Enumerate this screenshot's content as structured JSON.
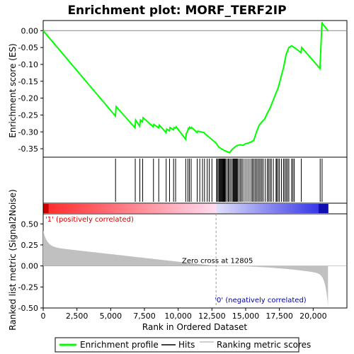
{
  "chart_data": {
    "title": "Enrichment plot: MORF_TERF2IP",
    "type": "line",
    "top_panel": {
      "ylabel": "Enrichment score (ES)",
      "ylim": [
        -0.375,
        0.03
      ],
      "yticks": [
        "0.00",
        "-0.05",
        "-0.10",
        "-0.15",
        "-0.20",
        "-0.25",
        "-0.30",
        "-0.35"
      ],
      "ytick_values": [
        0.0,
        -0.05,
        -0.1,
        -0.15,
        -0.2,
        -0.25,
        -0.3,
        -0.35
      ],
      "series": [
        {
          "name": "Enrichment profile",
          "color": "#00ff00",
          "x": [
            0,
            5350,
            5400,
            6800,
            6850,
            7150,
            7200,
            7350,
            7400,
            8150,
            8200,
            8550,
            8600,
            9100,
            9150,
            9350,
            9400,
            9650,
            9700,
            9800,
            9850,
            10550,
            10600,
            10700,
            10750,
            10800,
            10850,
            10950,
            11000,
            11400,
            11450,
            11900,
            12000,
            12800,
            13000,
            13200,
            13400,
            13600,
            13800,
            14000,
            14200,
            14400,
            14600,
            14800,
            15000,
            15200,
            15400,
            15600,
            15800,
            16000,
            16200,
            16400,
            16600,
            16800,
            17000,
            17200,
            17400,
            17600,
            17800,
            18000,
            18200,
            18400,
            18600,
            19100,
            19150,
            20500,
            20550,
            20650,
            20700,
            21100
          ],
          "y": [
            0.0,
            -0.253,
            -0.225,
            -0.288,
            -0.265,
            -0.283,
            -0.265,
            -0.27,
            -0.258,
            -0.285,
            -0.278,
            -0.288,
            -0.28,
            -0.302,
            -0.292,
            -0.297,
            -0.287,
            -0.294,
            -0.287,
            -0.289,
            -0.285,
            -0.322,
            -0.305,
            -0.298,
            -0.29,
            -0.292,
            -0.286,
            -0.29,
            -0.287,
            -0.302,
            -0.298,
            -0.302,
            -0.306,
            -0.333,
            -0.345,
            -0.35,
            -0.355,
            -0.358,
            -0.362,
            -0.352,
            -0.345,
            -0.34,
            -0.338,
            -0.34,
            -0.335,
            -0.333,
            -0.33,
            -0.325,
            -0.3,
            -0.28,
            -0.27,
            -0.262,
            -0.245,
            -0.23,
            -0.21,
            -0.19,
            -0.17,
            -0.14,
            -0.11,
            -0.07,
            -0.05,
            -0.045,
            -0.05,
            -0.065,
            -0.05,
            -0.112,
            -0.07,
            0.025,
            0.02,
            0.0
          ]
        }
      ]
    },
    "hits": [
      5360,
      6820,
      7160,
      7370,
      8170,
      8560,
      9110,
      9360,
      9660,
      9810,
      10560,
      10720,
      10830,
      10960,
      11410,
      11600,
      11800,
      11950,
      12150,
      12300,
      12500,
      12850,
      12900,
      13000,
      13050,
      13100,
      13150,
      13200,
      13250,
      13300,
      13350,
      13400,
      13450,
      13500,
      13600,
      13700,
      13750,
      13850,
      13950,
      14050,
      14100,
      14150,
      14200,
      14250,
      14300,
      14350,
      14400,
      14500,
      14600,
      14700,
      14800,
      14950,
      15100,
      15250,
      15400,
      15500,
      15600,
      15700,
      15800,
      15900,
      16000,
      16100,
      16200,
      16300,
      16450,
      16600,
      16700,
      16800,
      16900,
      17050,
      17250,
      17300,
      17400,
      17500,
      17650,
      17800,
      17900,
      18000,
      18100,
      18200,
      18400,
      18500,
      18600,
      19120,
      20520,
      20660
    ],
    "bottom_panel": {
      "ylabel": "Ranked list metric (Signal2Noise)",
      "ylim": [
        -0.5,
        0.62
      ],
      "yticks": [
        "0.50",
        "0.25",
        "0.00",
        "-0.25",
        "-0.50"
      ],
      "ytick_values": [
        0.5,
        0.25,
        0.0,
        -0.25,
        -0.5
      ],
      "positive_label": "'1' (positively correlated)",
      "negative_label": "'0' (negatively correlated)",
      "zero_cross_label": "Zero cross at 12805",
      "zero_cross": 12805
    },
    "xlabel": "Rank in Ordered Dataset",
    "xlim": [
      0,
      22500
    ],
    "xticks": [
      "0",
      "2,500",
      "5,000",
      "7,500",
      "10,000",
      "12,500",
      "15,000",
      "17,500",
      "20,000"
    ],
    "xtick_values": [
      0,
      2500,
      5000,
      7500,
      10000,
      12500,
      15000,
      17500,
      20000
    ],
    "n_genes": 21100,
    "legend": [
      {
        "label": "Enrichment profile",
        "color": "#00ff00"
      },
      {
        "label": "Hits",
        "color": "#000000"
      },
      {
        "label": "Ranking metric scores",
        "color": "#c0c0c0"
      }
    ]
  }
}
